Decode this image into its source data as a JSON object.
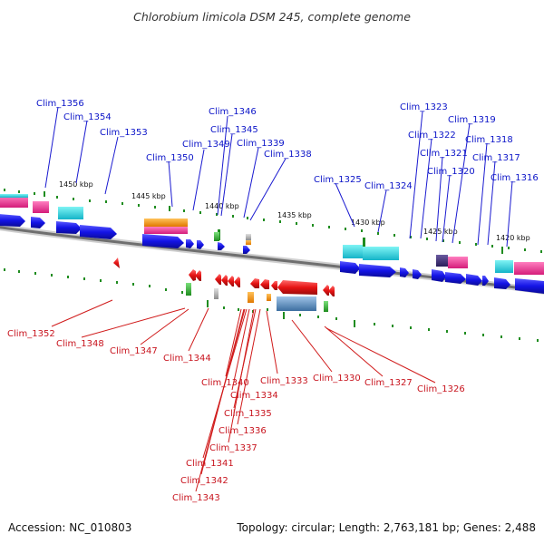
{
  "title": "Chlorobium limicola DSM 245, complete genome",
  "footer": {
    "accession": "Accession: NC_010803",
    "topology": "Topology: circular; Length: 2,763,181 bp; Genes: 2,488"
  },
  "colors": {
    "forward_label": "#0b14c8",
    "reverse_label": "#c8141e",
    "forward_gene": "#1414e6",
    "reverse_gene": "#e61414",
    "backbone": "#6f6f6f",
    "tick": "#1f8c1f"
  },
  "position_labels": [
    "1450 kbp",
    "1445 kbp",
    "1440 kbp",
    "1435 kbp",
    "1430 kbp",
    "1425 kbp",
    "1420 kbp"
  ],
  "forward_genes": [
    "Clim_1356",
    "Clim_1354",
    "Clim_1353",
    "Clim_1350",
    "Clim_1349",
    "Clim_1346",
    "Clim_1345",
    "Clim_1339",
    "Clim_1338",
    "Clim_1325",
    "Clim_1324",
    "Clim_1323",
    "Clim_1322",
    "Clim_1321",
    "Clim_1320",
    "Clim_1319",
    "Clim_1318",
    "Clim_1317",
    "Clim_1316"
  ],
  "reverse_genes": [
    "Clim_1352",
    "Clim_1348",
    "Clim_1347",
    "Clim_1344",
    "Clim_1340",
    "Clim_1334",
    "Clim_1335",
    "Clim_1336",
    "Clim_1337",
    "Clim_1341",
    "Clim_1342",
    "Clim_1343",
    "Clim_1333",
    "Clim_1330",
    "Clim_1327",
    "Clim_1326"
  ]
}
